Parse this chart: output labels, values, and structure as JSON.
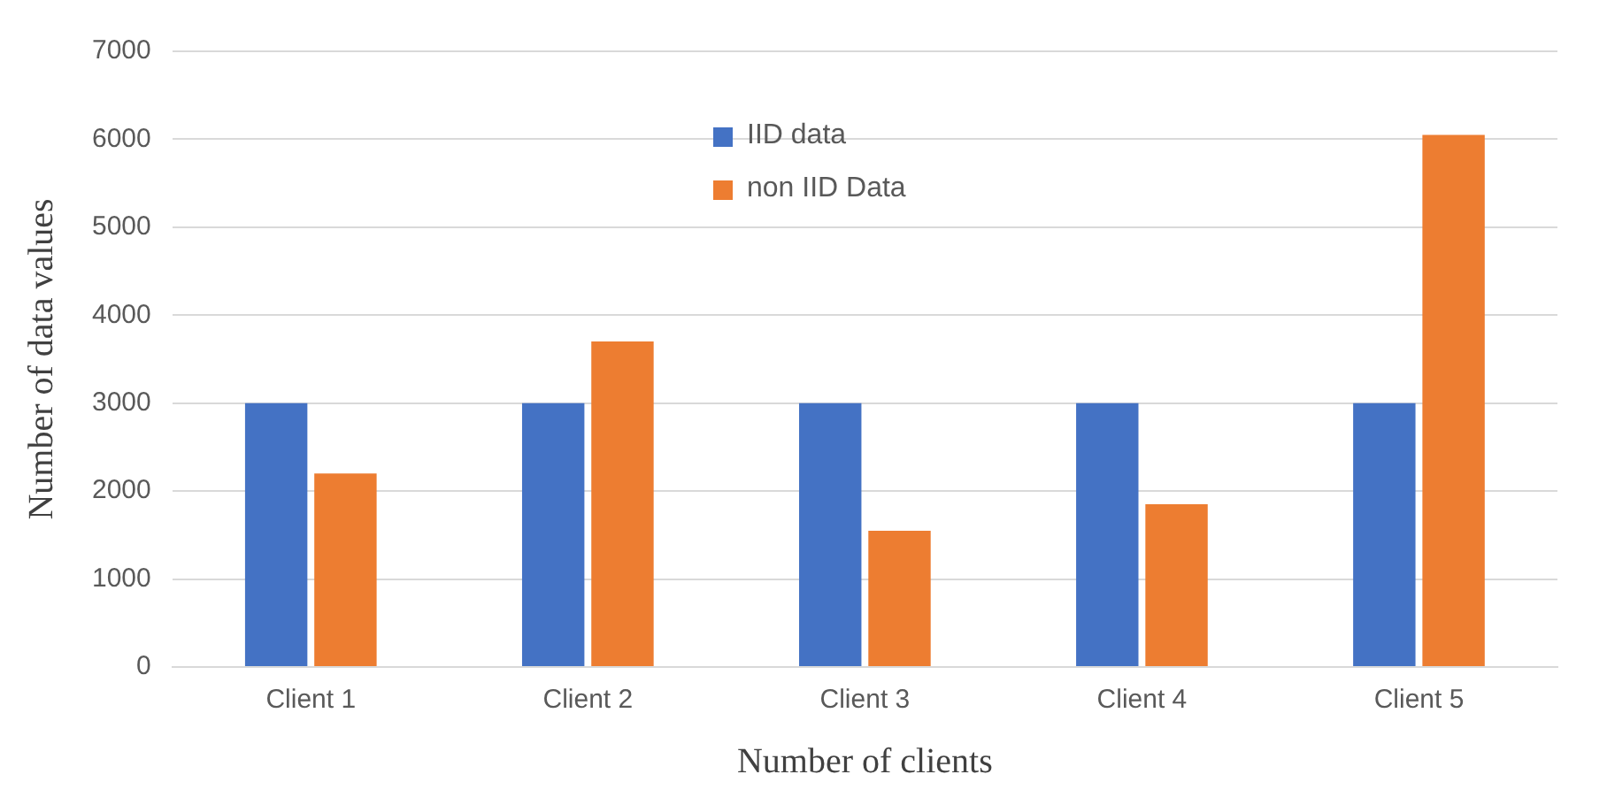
{
  "chart_data": {
    "type": "bar",
    "xlabel": "Number of clients",
    "ylabel": "Number of data values",
    "categories": [
      "Client 1",
      "Client 2",
      "Client 3",
      "Client 4",
      "Client 5"
    ],
    "series": [
      {
        "name": "IID data",
        "color": "#4472c4",
        "values": [
          3000,
          3000,
          3000,
          3000,
          3000
        ]
      },
      {
        "name": "non IID Data",
        "color": "#ed7d31",
        "values": [
          2200,
          3700,
          1550,
          1850,
          6050
        ]
      }
    ],
    "ylim": [
      0,
      7000
    ],
    "yticks": [
      0,
      1000,
      2000,
      3000,
      4000,
      5000,
      6000,
      7000
    ],
    "grid": "y",
    "legend": "top"
  }
}
